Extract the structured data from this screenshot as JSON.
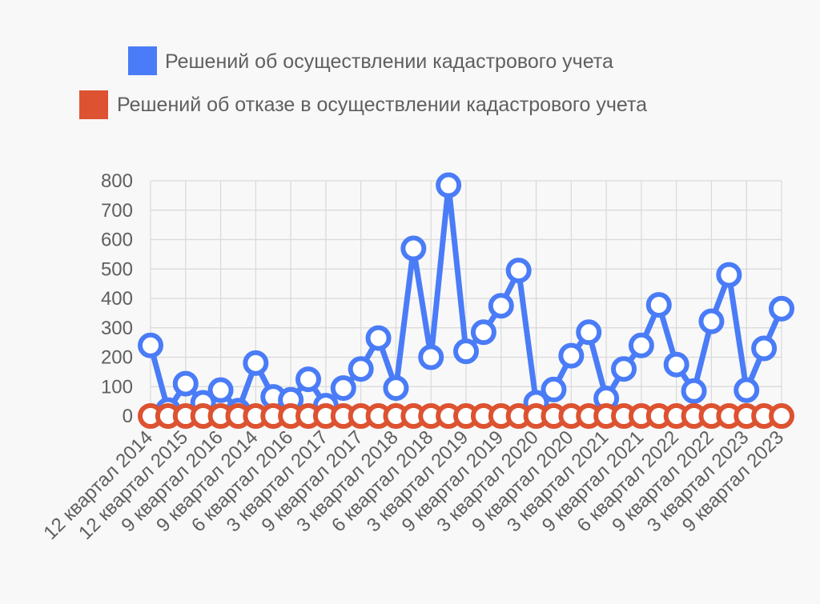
{
  "chart_data": {
    "type": "line",
    "title": "",
    "xlabel": "",
    "ylabel": "",
    "ylim": [
      0,
      800
    ],
    "yticks": [
      0,
      100,
      200,
      300,
      400,
      500,
      600,
      700,
      800
    ],
    "grid": true,
    "legend_position": "top",
    "categories": [
      "12 квартал 2014",
      "",
      "12 квартал 2015",
      "",
      "9 квартал 2016",
      "",
      "9 квартал 2014",
      "",
      "6 квартал 2016",
      "",
      "3 квартал 2017",
      "",
      "9 квартал 2017",
      "",
      "3 квартал 2018",
      "",
      "6 квартал 2018",
      "",
      "3 квартал 2019",
      "",
      "9 квартал 2019",
      "",
      "3 квартал 2020",
      "",
      "9 квартал 2020",
      "",
      "3 квартал 2021",
      "",
      "9 квартал 2021",
      "",
      "6 квартал 2022",
      "",
      "9 квартал 2022",
      "",
      "3 квартал 2023",
      "",
      "9 квартал 2023"
    ],
    "series": [
      {
        "name": "Решений об осуществлении кадастрового учета",
        "color": "#4a7cf7",
        "values": [
          240,
          20,
          110,
          45,
          88,
          18,
          180,
          65,
          55,
          125,
          35,
          95,
          160,
          265,
          95,
          570,
          200,
          785,
          220,
          285,
          375,
          495,
          45,
          90,
          205,
          285,
          60,
          160,
          240,
          378,
          175,
          85,
          322,
          480,
          88,
          230,
          365
        ]
      },
      {
        "name": "Решений об отказе в осуществлении кадастрового учета",
        "color": "#dd5230",
        "values": [
          0,
          0,
          0,
          0,
          0,
          0,
          0,
          0,
          0,
          0,
          0,
          0,
          0,
          0,
          0,
          0,
          0,
          0,
          0,
          0,
          0,
          0,
          0,
          0,
          0,
          0,
          0,
          0,
          0,
          0,
          0,
          0,
          0,
          0,
          0,
          0,
          0
        ]
      }
    ]
  }
}
